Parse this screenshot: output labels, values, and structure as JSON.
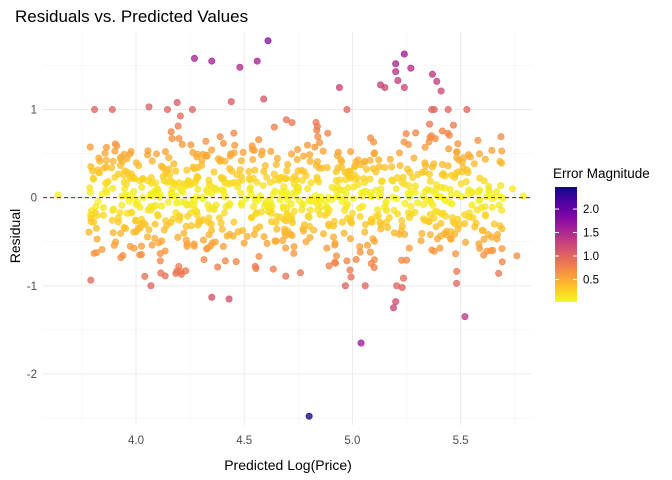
{
  "chart_data": {
    "type": "scatter",
    "title": "Residuals vs. Predicted Values",
    "xlabel": "Predicted Log(Price)",
    "ylabel": "Residual",
    "xlim": [
      3.57,
      5.83
    ],
    "ylim": [
      -2.58,
      1.88
    ],
    "x_ticks": [
      4.0,
      4.5,
      5.0,
      5.5
    ],
    "x_tick_labels": [
      "4.0",
      "4.5",
      "5.0",
      "5.5"
    ],
    "y_ticks": [
      -2,
      -1,
      0,
      1
    ],
    "y_tick_labels": [
      "-2",
      "-1",
      "0",
      "1"
    ],
    "grid": true,
    "reference_line": {
      "y": 0,
      "style": "dashed",
      "color": "#8b1a1a"
    },
    "color_scale": {
      "title": "Error Magnitude",
      "palette": "plasma (reversed)",
      "domain": [
        0.0,
        2.5
      ],
      "ticks": [
        0.5,
        1.0,
        1.5,
        2.0
      ],
      "tick_labels": [
        "0.5",
        "1.0",
        "1.5",
        "2.0"
      ],
      "stops": [
        "#f0f921",
        "#fdca26",
        "#fb9f3a",
        "#ed7953",
        "#d8576b",
        "#bd3786",
        "#9c179e",
        "#7201a8",
        "#46039f",
        "#0d0887"
      ]
    },
    "legend_position": "right",
    "notable_points": [
      {
        "x": 4.8,
        "y": -2.48
      },
      {
        "x": 5.04,
        "y": -1.65
      },
      {
        "x": 5.52,
        "y": -1.35
      },
      {
        "x": 4.61,
        "y": 1.78
      },
      {
        "x": 5.24,
        "y": 1.63
      },
      {
        "x": 4.27,
        "y": 1.58
      },
      {
        "x": 4.35,
        "y": 1.55
      },
      {
        "x": 4.48,
        "y": 1.48
      },
      {
        "x": 4.56,
        "y": 1.55
      },
      {
        "x": 5.2,
        "y": 1.52
      },
      {
        "x": 5.2,
        "y": 1.43
      },
      {
        "x": 5.27,
        "y": 1.47
      },
      {
        "x": 5.37,
        "y": 1.4
      },
      {
        "x": 5.39,
        "y": 1.32
      },
      {
        "x": 5.41,
        "y": 1.21
      },
      {
        "x": 4.94,
        "y": 1.25
      },
      {
        "x": 5.13,
        "y": 1.28
      },
      {
        "x": 5.15,
        "y": 1.25
      },
      {
        "x": 5.21,
        "y": 1.33
      },
      {
        "x": 5.24,
        "y": 1.25
      },
      {
        "x": 4.44,
        "y": 1.09
      },
      {
        "x": 4.59,
        "y": 1.12
      },
      {
        "x": 4.06,
        "y": 1.03
      },
      {
        "x": 4.19,
        "y": 1.08
      },
      {
        "x": 4.35,
        "y": -1.13
      },
      {
        "x": 4.43,
        "y": -1.15
      },
      {
        "x": 5.19,
        "y": -1.25
      },
      {
        "x": 5.2,
        "y": -1.18
      },
      {
        "x": 5.23,
        "y": -1.02
      },
      {
        "x": 4.21,
        "y": -0.87
      },
      {
        "x": 4.23,
        "y": -0.83
      },
      {
        "x": 3.93,
        "y": -0.68
      },
      {
        "x": 5.58,
        "y": 0.65
      },
      {
        "x": 5.69,
        "y": 0.53
      },
      {
        "x": 5.76,
        "y": -0.66
      },
      {
        "x": 3.64,
        "y": 0.03
      },
      {
        "x": 5.79,
        "y": 0.02
      },
      {
        "x": 5.74,
        "y": 0.1
      }
    ],
    "bulk_distribution": {
      "n": 880,
      "x_ranges": [
        [
          3.78,
          4.7
        ],
        [
          4.7,
          5.7
        ]
      ],
      "residual_sd": 0.4
    }
  }
}
